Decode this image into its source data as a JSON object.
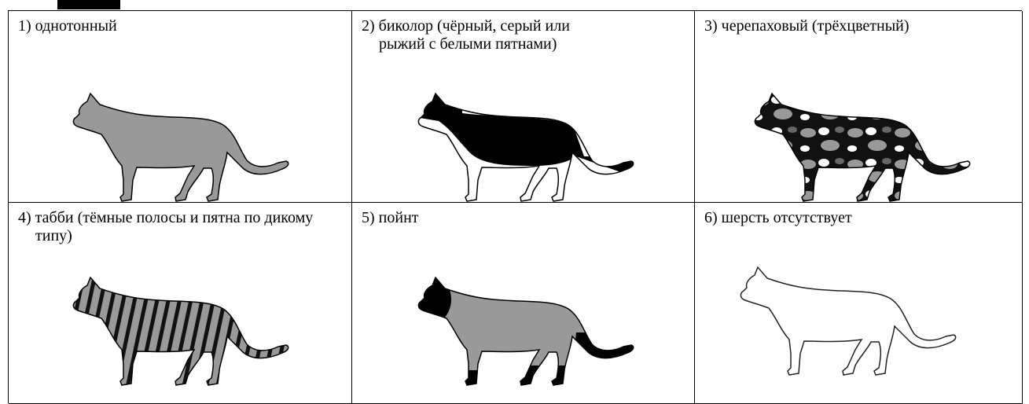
{
  "cells": [
    {
      "label": "1) однотонный"
    },
    {
      "label": "2) биколор (чёрный, серый или рыжий с белыми пятнами)"
    },
    {
      "label": "3) черепаховый (трёхцветный)"
    },
    {
      "label": "4) табби (тёмные полосы и пятна по дикому типу)"
    },
    {
      "label": "5) пойнт"
    },
    {
      "label": "6) шерсть отсутствует"
    }
  ]
}
